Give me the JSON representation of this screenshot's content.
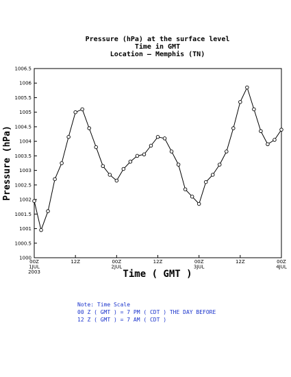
{
  "chart_data": {
    "type": "line",
    "title": [
      "Pressure (hPa) at the surface level",
      "Time in GMT",
      "Location — Memphis (TN)"
    ],
    "xlabel": "Time ( GMT )",
    "ylabel": "Pressure (hPa)",
    "ylim": [
      1000,
      1006.5
    ],
    "yticks": [
      "1000",
      "1000.5",
      "1001",
      "1001.5",
      "1002",
      "1002.5",
      "1003",
      "1003.5",
      "1004",
      "1004.5",
      "1005",
      "1005.5",
      "1006",
      "1006.5"
    ],
    "xlim_hours": [
      0,
      72
    ],
    "xticks": [
      {
        "hour": 0,
        "lines": [
          "00Z",
          "1JUL",
          "2003"
        ]
      },
      {
        "hour": 12,
        "lines": [
          "12Z"
        ]
      },
      {
        "hour": 24,
        "lines": [
          "00Z",
          "2JUL"
        ]
      },
      {
        "hour": 36,
        "lines": [
          "12Z"
        ]
      },
      {
        "hour": 48,
        "lines": [
          "00Z",
          "3JUL"
        ]
      },
      {
        "hour": 60,
        "lines": [
          "12Z"
        ]
      },
      {
        "hour": 72,
        "lines": [
          "00Z",
          "4JUL"
        ]
      }
    ],
    "series": [
      {
        "x": [
          0,
          2,
          4,
          6,
          8,
          10,
          12,
          14,
          16,
          18,
          20,
          22,
          24,
          26,
          28,
          30,
          32,
          34,
          36,
          38,
          40,
          42,
          44,
          46,
          48,
          50,
          52,
          54,
          56,
          58,
          60,
          62,
          64,
          66,
          68,
          70,
          72
        ],
        "y": [
          1001.95,
          1000.95,
          1001.6,
          1002.7,
          1003.25,
          1004.15,
          1005.0,
          1005.1,
          1004.45,
          1003.8,
          1003.15,
          1002.85,
          1002.65,
          1003.05,
          1003.3,
          1003.5,
          1003.55,
          1003.85,
          1004.15,
          1004.1,
          1003.65,
          1003.2,
          1002.35,
          1002.1,
          1001.85,
          1002.6,
          1002.85,
          1003.2,
          1003.65,
          1004.45,
          1005.35,
          1005.85,
          1005.1,
          1004.35,
          1003.9,
          1004.05,
          1004.4
        ]
      }
    ]
  },
  "note": {
    "lines": [
      "Note: Time Scale",
      "00 Z ( GMT ) = 7 PM ( CDT ) THE DAY BEFORE",
      "12 Z ( GMT ) = 7 AM ( CDT )"
    ]
  }
}
